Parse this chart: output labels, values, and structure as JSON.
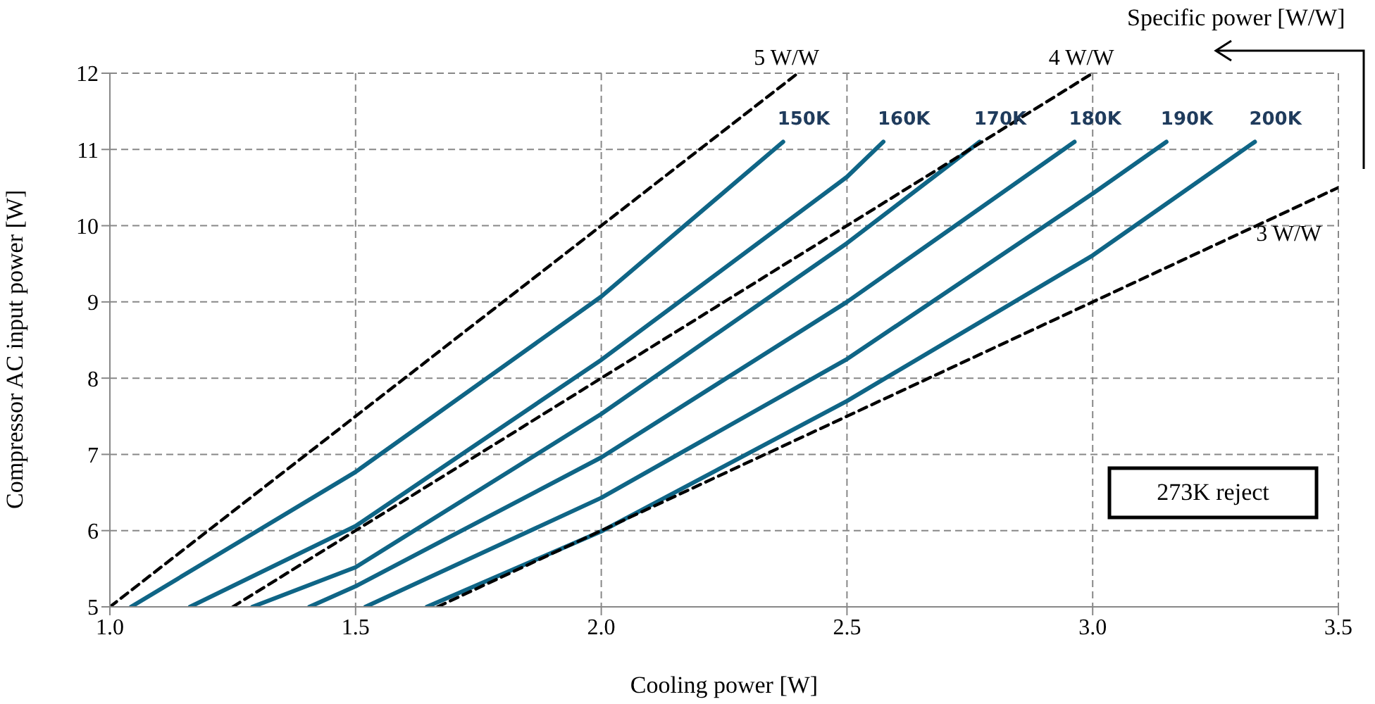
{
  "chart_data": {
    "type": "line",
    "xlabel": "Cooling power [W]",
    "ylabel": "Compressor AC input power [W]",
    "xlim": [
      1.0,
      3.5
    ],
    "xticks": [
      {
        "value": 1,
        "label": "1.0"
      },
      1.5,
      {
        "value": 2,
        "label": "2.0"
      },
      2.5,
      {
        "value": 3,
        "label": "3.0"
      },
      3.5
    ],
    "ylim": [
      5,
      12
    ],
    "yticks": [
      5,
      6,
      7,
      8,
      9,
      10,
      11,
      12
    ],
    "grid": true,
    "legend": false,
    "marker": "none",
    "series": [
      {
        "name": "150K",
        "color": "#0f6586",
        "line_style": "solid",
        "x": [
          1.043,
          1.5,
          2.0,
          2.37
        ],
        "values": [
          5,
          6.77,
          9.07,
          11.1
        ]
      },
      {
        "name": "160K",
        "color": "#0f6586",
        "line_style": "solid",
        "x": [
          1.163,
          1.5,
          2.0,
          2.5,
          2.574
        ],
        "values": [
          5,
          6.06,
          8.24,
          10.64,
          11.1
        ]
      },
      {
        "name": "170K",
        "color": "#0f6586",
        "line_style": "solid",
        "x": [
          1.29,
          1.5,
          2.0,
          2.5,
          2.77
        ],
        "values": [
          5,
          5.52,
          7.53,
          9.77,
          11.1
        ]
      },
      {
        "name": "180K",
        "color": "#0f6586",
        "line_style": "solid",
        "x": [
          1.406,
          1.5,
          2.0,
          2.5,
          2.963
        ],
        "values": [
          5,
          5.27,
          6.96,
          9.0,
          11.1
        ]
      },
      {
        "name": "190K",
        "color": "#0f6586",
        "line_style": "solid",
        "x": [
          1.52,
          2.0,
          2.5,
          3.0,
          3.15
        ],
        "values": [
          5,
          6.43,
          8.25,
          10.42,
          11.1
        ]
      },
      {
        "name": "200K",
        "color": "#0f6586",
        "line_style": "solid",
        "x": [
          1.645,
          2.0,
          2.5,
          3.0,
          3.33
        ],
        "values": [
          5,
          5.99,
          7.7,
          9.61,
          11.1
        ]
      },
      {
        "name": "5 W/W",
        "color": "#000000",
        "line_style": "dashed",
        "x": [
          1.0,
          2.4
        ],
        "values": [
          5,
          12
        ]
      },
      {
        "name": "4 W/W",
        "color": "#000000",
        "line_style": "dashed",
        "x": [
          1.25,
          3.0
        ],
        "values": [
          5,
          12
        ]
      },
      {
        "name": "3 W/W",
        "color": "#000000",
        "line_style": "dashed",
        "x": [
          1.6667,
          3.5
        ],
        "values": [
          5,
          10.5
        ]
      }
    ],
    "annotations": [
      "273K reject",
      "Specific power [W/W]"
    ]
  }
}
